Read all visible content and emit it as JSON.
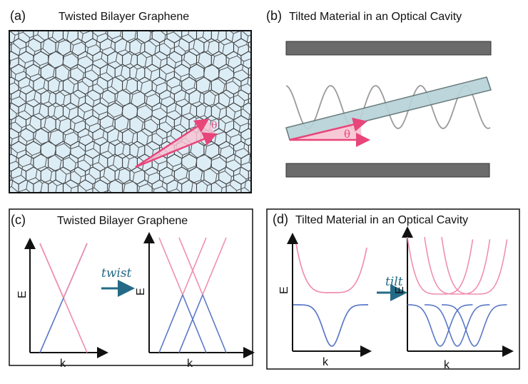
{
  "panels": {
    "a": {
      "tag": "(a)",
      "title": "Twisted Bilayer Graphene",
      "angle_label": "θ"
    },
    "b": {
      "tag": "(b)",
      "title": "Tilted Material in an Optical Cavity",
      "angle_label": "θ"
    },
    "c": {
      "tag": "(c)",
      "title": "Twisted Bilayer Graphene",
      "arrow_label": "twist",
      "y_axis": "E",
      "x_axis": "k"
    },
    "d": {
      "tag": "(d)",
      "title": "Tilted Material in an Optical Cavity",
      "arrow_label": "tilt",
      "y_axis": "E",
      "x_axis": "k"
    }
  },
  "colors": {
    "pink": "#f08fb0",
    "blue": "#5a78c8",
    "accent": "#e8457a",
    "arrow_teal": "#246a87",
    "mirror": "#6b6b6b",
    "slab": "#b7d3d8",
    "wave": "#9a9a9a",
    "hex_fill": "#dcedf6"
  },
  "icons": {
    "panel_c_arrow": "right-arrow-icon",
    "panel_d_arrow": "right-arrow-icon"
  }
}
